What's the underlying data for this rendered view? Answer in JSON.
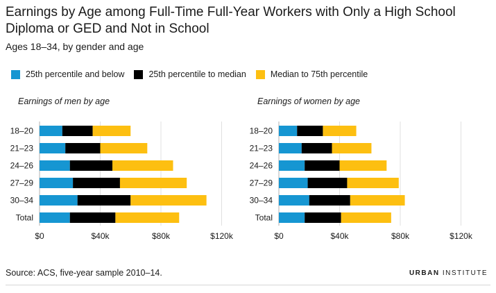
{
  "title": "Earnings by Age among Full-Time Full-Year Workers with Only a High School Diploma or GED and Not in School",
  "subtitle": "Ages 18–34, by gender and age",
  "legend": [
    {
      "label": "25th percentile and below",
      "color": "#1696d2"
    },
    {
      "label": "25th percentile to median",
      "color": "#000000"
    },
    {
      "label": "Median to 75th percentile",
      "color": "#fdbf11"
    }
  ],
  "source": "Source: ACS, five-year sample 2010–14.",
  "brand": {
    "part1": "URBAN",
    "part2": " INSTITUTE"
  },
  "chart_data": [
    {
      "type": "bar",
      "stacked": true,
      "orientation": "horizontal",
      "title": "Earnings of men by age",
      "categories": [
        "18–20",
        "21–23",
        "24–26",
        "27–29",
        "30–34",
        "Total"
      ],
      "series": [
        {
          "name": "25th percentile and below",
          "color": "#1696d2",
          "values": [
            15000,
            17000,
            20000,
            22000,
            25000,
            20000
          ]
        },
        {
          "name": "25th percentile to median",
          "color": "#000000",
          "values": [
            20000,
            23000,
            28000,
            31000,
            35000,
            30000
          ]
        },
        {
          "name": "Median to 75th percentile",
          "color": "#fdbf11",
          "values": [
            25000,
            31000,
            40000,
            44000,
            50000,
            42000
          ]
        }
      ],
      "xlim": [
        0,
        120000
      ],
      "xticks": [
        "$0",
        "$40k",
        "$80k",
        "$120k"
      ],
      "grid": true
    },
    {
      "type": "bar",
      "stacked": true,
      "orientation": "horizontal",
      "title": "Earnings of women by age",
      "categories": [
        "18–20",
        "21–23",
        "24–26",
        "27–29",
        "30–34",
        "Total"
      ],
      "series": [
        {
          "name": "25th percentile and below",
          "color": "#1696d2",
          "values": [
            12000,
            15000,
            17000,
            19000,
            20000,
            17000
          ]
        },
        {
          "name": "25th percentile to median",
          "color": "#000000",
          "values": [
            17000,
            20000,
            23000,
            26000,
            27000,
            24000
          ]
        },
        {
          "name": "Median to 75th percentile",
          "color": "#fdbf11",
          "values": [
            22000,
            26000,
            31000,
            34000,
            36000,
            33000
          ]
        }
      ],
      "xlim": [
        0,
        120000
      ],
      "xticks": [
        "$0",
        "$40k",
        "$80k",
        "$120k"
      ],
      "grid": true
    }
  ]
}
